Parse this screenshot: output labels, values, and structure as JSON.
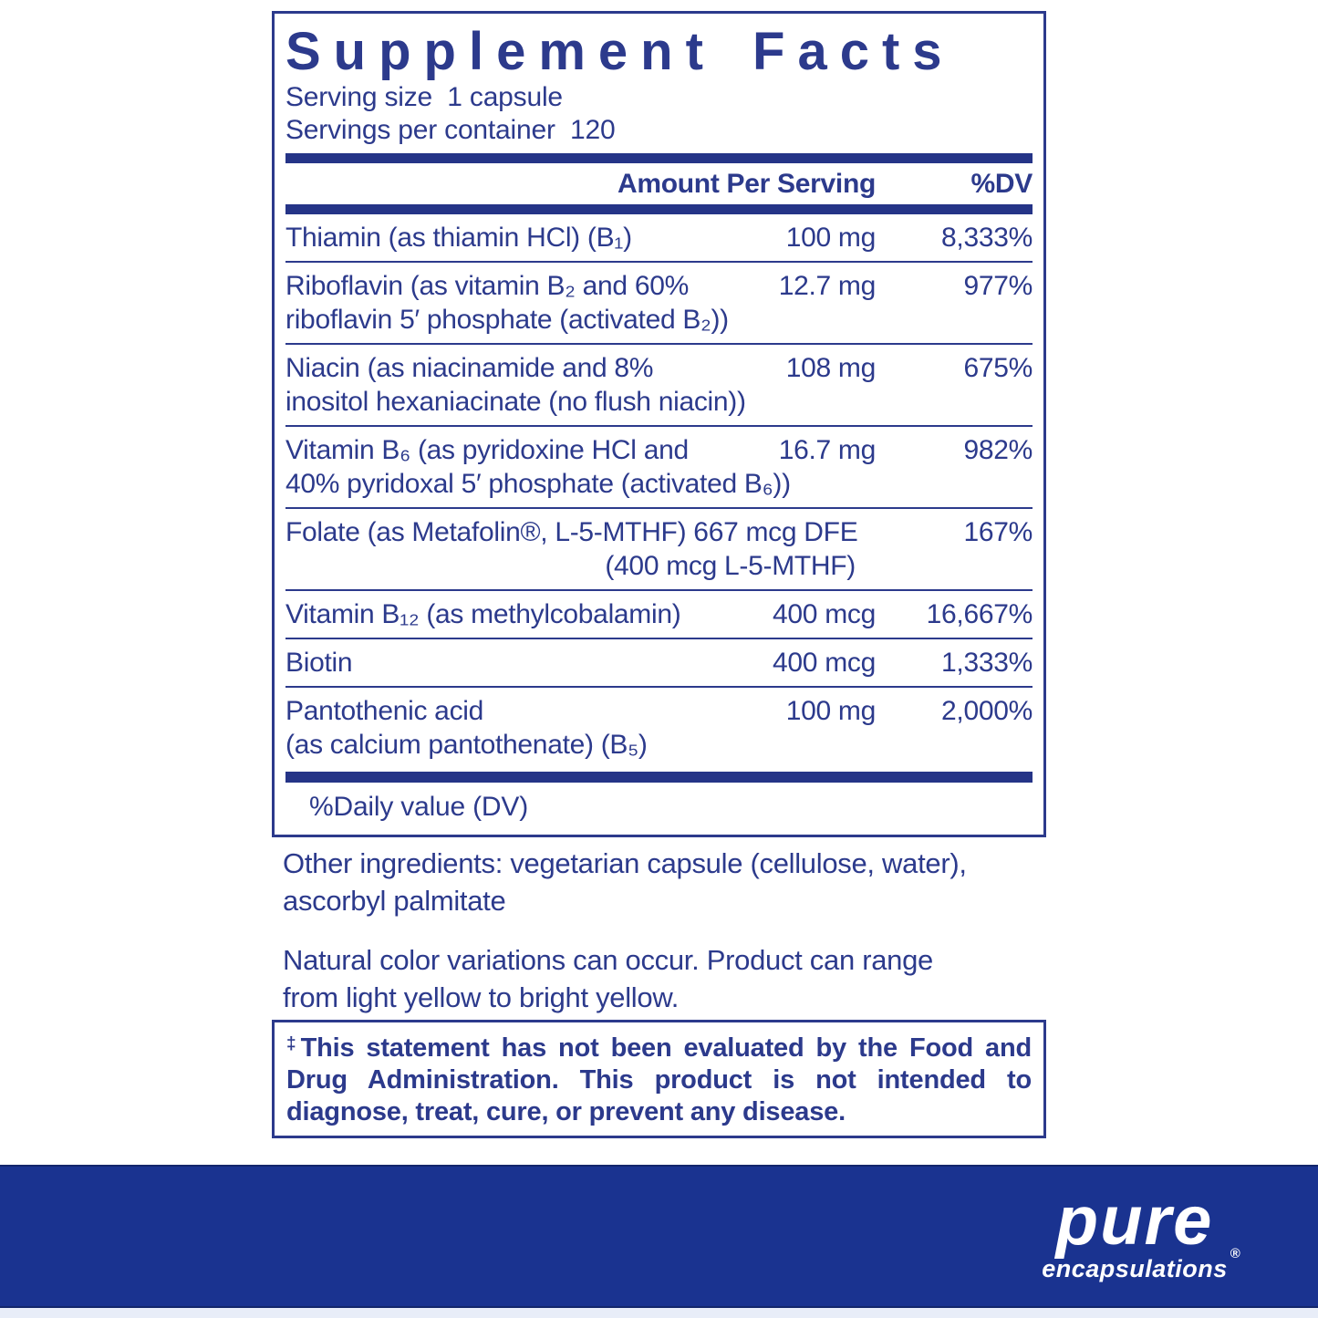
{
  "label": {
    "title": "Supplement Facts",
    "serving_size_line": "Serving size  1 capsule",
    "servings_per_container_line": "Servings per container  120",
    "header": {
      "amount": "Amount Per Serving",
      "dv": "%DV"
    },
    "rows": [
      {
        "name": "Thiamin (as thiamin HCl) (B₁)",
        "amount": "100 mg",
        "dv": "8,333%"
      },
      {
        "name": "Riboflavin (as vitamin B₂ and 60%",
        "name2": "riboflavin 5′ phosphate (activated B₂))",
        "amount": "12.7 mg",
        "dv": "977%"
      },
      {
        "name": "Niacin (as niacinamide and 8%",
        "name2": "inositol hexaniacinate (no flush niacin))",
        "amount": "108 mg",
        "dv": "675%"
      },
      {
        "name": "Vitamin B₆ (as pyridoxine HCl and",
        "name2": "40% pyridoxal 5′ phosphate (activated B₆))",
        "amount": "16.7 mg",
        "dv": "982%"
      },
      {
        "name": "Folate (as Metafolin®, L-5-MTHF) 667 mcg DFE",
        "name2": "(400 mcg L-5-MTHF)",
        "dv": "167%"
      },
      {
        "name": "Vitamin B₁₂ (as methylcobalamin)",
        "amount": "400 mcg",
        "dv": "16,667%"
      },
      {
        "name": "Biotin",
        "amount": "400 mcg",
        "dv": "1,333%"
      },
      {
        "name": "Pantothenic acid",
        "name2": "(as calcium pantothenate) (B₅)",
        "amount": "100 mg",
        "dv": "2,000%"
      }
    ],
    "dv_footnote": "%Daily value (DV)"
  },
  "other_ingredients": {
    "line1": "Other ingredients: vegetarian capsule (cellulose, water),",
    "line2": "ascorbyl palmitate"
  },
  "color_note": {
    "line1": "Natural color variations can occur. Product can range",
    "line2": "from light yellow to bright yellow."
  },
  "disclaimer": {
    "dagger": "‡",
    "line1": "This statement has not been evaluated by the Food and",
    "line2": "Drug Administration. This product is not intended to",
    "line3": "diagnose, treat, cure, or prevent any disease."
  },
  "brand": {
    "name": "pure",
    "subname": "encapsulations",
    "registered": "®"
  },
  "colors": {
    "text_navy": "#2c3a8c",
    "bar_navy": "#253487",
    "band_blue": "#1a3390",
    "logo_white": "#ffffff",
    "bottom_strip": "#e8edf8"
  }
}
